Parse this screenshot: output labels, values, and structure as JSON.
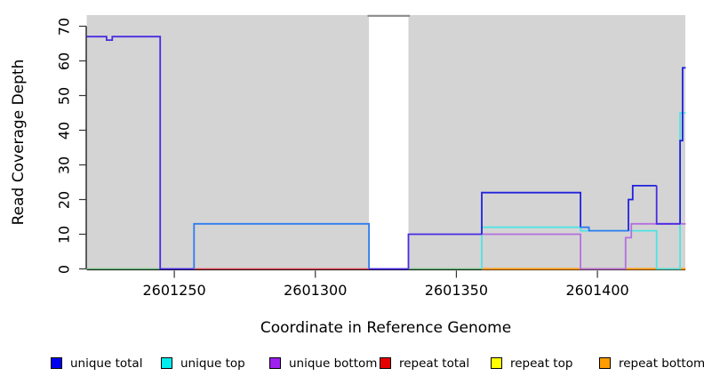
{
  "y_axis": {
    "label": "Read Coverage Depth",
    "ticks": [
      0,
      10,
      20,
      30,
      40,
      50,
      60,
      70
    ]
  },
  "x_axis": {
    "label": "Coordinate in Reference Genome",
    "ticks": [
      2601250,
      2601300,
      2601350,
      2601400
    ]
  },
  "legend": [
    {
      "label": "unique total",
      "color": "#0000EE"
    },
    {
      "label": "unique top",
      "color": "#00EEEE"
    },
    {
      "label": "unique bottom",
      "color": "#A020F0"
    },
    {
      "label": "repeat total",
      "color": "#E60000"
    },
    {
      "label": "repeat top",
      "color": "#FFFF00"
    },
    {
      "label": "repeat bottom",
      "color": "#FF9D00"
    }
  ],
  "chart_data": {
    "type": "line",
    "subtype": "step-coverage",
    "title": "",
    "xlabel": "Coordinate in Reference Genome",
    "ylabel": "Read Coverage Depth",
    "x_domain": [
      2601219,
      2601431.3
    ],
    "ylim": [
      0,
      73.5
    ],
    "x_ticks": [
      2601250,
      2601300,
      2601350,
      2601400
    ],
    "y_ticks": [
      0,
      10,
      20,
      30,
      40,
      50,
      60,
      70
    ],
    "plot_bg": "#D4D4D4",
    "gap_region": [
      2601319,
      2601333
    ],
    "series": [
      {
        "name": "unique total",
        "color": "#0000EE",
        "steps": [
          [
            2601219,
            67
          ],
          [
            2601226,
            66
          ],
          [
            2601228,
            67
          ],
          [
            2601245,
            0
          ],
          [
            2601257,
            13
          ],
          [
            2601319,
            0
          ],
          [
            2601333,
            10
          ],
          [
            2601359,
            22
          ],
          [
            2601394,
            12
          ],
          [
            2601397,
            11
          ],
          [
            2601411,
            20
          ],
          [
            2601412,
            24
          ],
          [
            2601421,
            13
          ],
          [
            2601429,
            37
          ],
          [
            2601430,
            58
          ],
          [
            2601431,
            58
          ]
        ]
      },
      {
        "name": "unique top",
        "color": "#00EEEE",
        "steps": [
          [
            2601219,
            0
          ],
          [
            2601359,
            12
          ],
          [
            2601394,
            11
          ],
          [
            2601421,
            0
          ],
          [
            2601429,
            45
          ],
          [
            2601431,
            45
          ]
        ]
      },
      {
        "name": "unique bottom",
        "color": "#A020F0",
        "steps": [
          [
            2601219,
            67
          ],
          [
            2601226,
            66
          ],
          [
            2601228,
            67
          ],
          [
            2601245,
            0
          ],
          [
            2601333,
            10
          ],
          [
            2601394,
            0
          ],
          [
            2601410,
            9
          ],
          [
            2601412,
            13
          ],
          [
            2601431,
            13
          ]
        ]
      },
      {
        "name": "repeat total",
        "color": "#E60000",
        "steps": [
          [
            2601219,
            0
          ],
          [
            2601431,
            0
          ]
        ]
      },
      {
        "name": "repeat top",
        "color": "#FFFF00",
        "steps": [
          [
            2601219,
            0
          ],
          [
            2601431,
            0
          ]
        ]
      },
      {
        "name": "repeat bottom",
        "color": "#FF9D00",
        "steps": [
          [
            2601219,
            0
          ],
          [
            2601431,
            0
          ]
        ]
      }
    ],
    "plot_lines": [
      {
        "name": "zero-left-green",
        "color": "#6cbb7d",
        "width": 1.6,
        "points": [
          [
            2601219,
            0
          ],
          [
            2601245,
            0
          ]
        ]
      },
      {
        "name": "zero-mid-green",
        "color": "#6cbb7d",
        "width": 1.6,
        "points": [
          [
            2601333,
            0
          ],
          [
            2601359,
            0
          ]
        ]
      },
      {
        "name": "zero-red",
        "color": "#e0485a",
        "width": 1.6,
        "points": [
          [
            2601257,
            0
          ],
          [
            2601319.5,
            0
          ]
        ]
      },
      {
        "name": "zero-orange",
        "color": "#ff9b0e",
        "width": 2.0,
        "points": [
          [
            2601359,
            0
          ],
          [
            2601431.3,
            0
          ]
        ]
      },
      {
        "name": "unique-top-path",
        "color": "#4fe3e3",
        "width": 1.8,
        "points": [
          [
            2601359,
            0
          ],
          [
            2601359,
            12
          ],
          [
            2601394,
            12
          ],
          [
            2601394,
            11
          ],
          [
            2601421,
            11
          ],
          [
            2601421,
            0
          ],
          [
            2601429.3,
            0
          ],
          [
            2601429.3,
            45
          ],
          [
            2601431.3,
            45
          ]
        ]
      },
      {
        "name": "unique-bottom-path",
        "color": "#b56fe0",
        "width": 1.8,
        "points": [
          [
            2601359,
            10
          ],
          [
            2601394,
            10
          ],
          [
            2601394,
            0
          ],
          [
            2601410,
            0
          ],
          [
            2601410,
            9
          ],
          [
            2601412,
            9
          ],
          [
            2601412,
            13
          ],
          [
            2601431.3,
            13
          ]
        ]
      },
      {
        "name": "blue-67-notch",
        "color": "#4b2be2",
        "width": 1.8,
        "points": [
          [
            2601219,
            67
          ],
          [
            2601226,
            67
          ],
          [
            2601226,
            66
          ],
          [
            2601228,
            66
          ],
          [
            2601228,
            67
          ],
          [
            2601245,
            67
          ],
          [
            2601245,
            0
          ],
          [
            2601257,
            0
          ]
        ]
      },
      {
        "name": "blue-13-box",
        "color": "#2e7cf0",
        "width": 1.8,
        "points": [
          [
            2601257,
            0
          ],
          [
            2601257,
            13
          ],
          [
            2601319,
            13
          ],
          [
            2601319,
            0
          ]
        ]
      },
      {
        "name": "blue-gap-zero",
        "color": "#4b2be2",
        "width": 1.8,
        "points": [
          [
            2601319,
            0
          ],
          [
            2601333,
            0
          ]
        ]
      },
      {
        "name": "blue-10-run",
        "color": "#4b2be2",
        "width": 1.8,
        "points": [
          [
            2601333,
            0
          ],
          [
            2601333,
            10
          ],
          [
            2601359,
            10
          ]
        ]
      },
      {
        "name": "blue-22-box",
        "color": "#2121dc",
        "width": 1.8,
        "points": [
          [
            2601359,
            10
          ],
          [
            2601359,
            22
          ],
          [
            2601394,
            22
          ],
          [
            2601394,
            12
          ]
        ]
      },
      {
        "name": "blue-11-run",
        "color": "#2e7cf0",
        "width": 1.8,
        "points": [
          [
            2601394,
            12
          ],
          [
            2601397,
            12
          ],
          [
            2601397,
            11
          ],
          [
            2601411,
            11
          ]
        ]
      },
      {
        "name": "blue-24-box",
        "color": "#2121dc",
        "width": 1.8,
        "points": [
          [
            2601411,
            11
          ],
          [
            2601411,
            20
          ],
          [
            2601412.5,
            20
          ],
          [
            2601412.5,
            24
          ],
          [
            2601421,
            24
          ]
        ]
      },
      {
        "name": "blue-13-right",
        "color": "#4b2be2",
        "width": 1.8,
        "points": [
          [
            2601421,
            24
          ],
          [
            2601421,
            13
          ],
          [
            2601429.3,
            13
          ]
        ]
      },
      {
        "name": "blue-58-spike",
        "color": "#2121dc",
        "width": 1.8,
        "points": [
          [
            2601429.3,
            13
          ],
          [
            2601429.3,
            37
          ],
          [
            2601430.2,
            37
          ],
          [
            2601430.2,
            58
          ],
          [
            2601431.3,
            58
          ]
        ]
      },
      {
        "name": "gap-top-cap",
        "color": "#8a8a8a",
        "width": 2.2,
        "points": [
          [
            2601318.5,
            73
          ],
          [
            2601333.5,
            73
          ]
        ]
      }
    ]
  }
}
